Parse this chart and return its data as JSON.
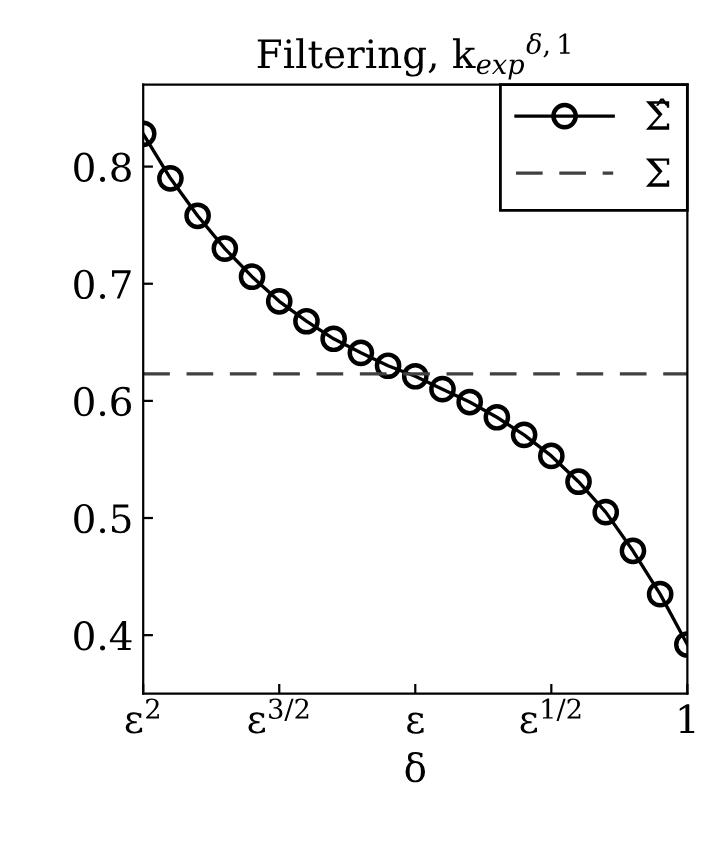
{
  "chart_data": {
    "type": "line",
    "title": "Filtering, k$_{exp}$$^{δ,1}$",
    "xlabel": "δ",
    "categories": [
      "ε$^{2}$",
      null,
      null,
      null,
      null,
      "ε$^{3/2}$",
      null,
      null,
      null,
      null,
      "ε",
      null,
      null,
      null,
      null,
      "ε$^{1/2}$",
      null,
      null,
      null,
      null,
      "1"
    ],
    "series": [
      {
        "name": "Σ̂",
        "color": "#000000",
        "marker": "circle",
        "line_style": "solid",
        "values": [
          0.828,
          0.79,
          0.758,
          0.73,
          0.706,
          0.685,
          0.668,
          0.653,
          0.641,
          0.63,
          0.621,
          0.61,
          0.599,
          0.586,
          0.571,
          0.553,
          0.531,
          0.505,
          0.472,
          0.435,
          0.392
        ]
      },
      {
        "name": "Σ",
        "color": "#404040",
        "marker": "none",
        "line_style": "dashed",
        "values": [
          0.623,
          0.623,
          0.623,
          0.623,
          0.623,
          0.623,
          0.623,
          0.623,
          0.623,
          0.623,
          0.623,
          0.623,
          0.623,
          0.623,
          0.623,
          0.623,
          0.623,
          0.623,
          0.623,
          0.623,
          0.623
        ]
      }
    ],
    "ylim": [
      0.35,
      0.87
    ],
    "yticks": [
      0.4,
      0.5,
      0.6,
      0.7,
      0.8
    ],
    "grid": false,
    "legend": "top right"
  }
}
